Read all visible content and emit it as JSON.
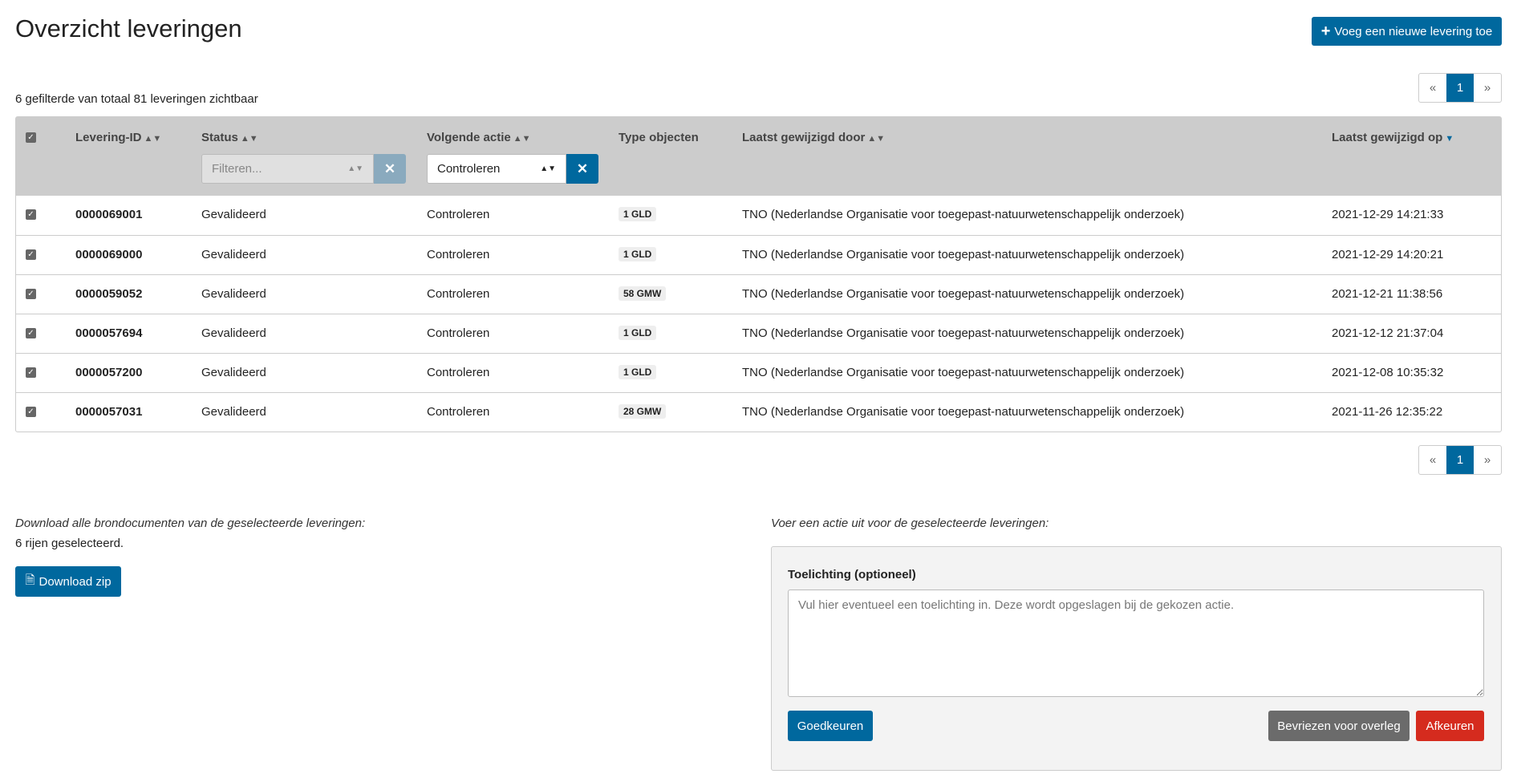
{
  "page": {
    "title": "Overzicht leveringen",
    "add_button": "Voeg een nieuwe levering toe",
    "summary": "6 gefilterde van totaal 81 leveringen zichtbaar"
  },
  "pagination": {
    "prev": "«",
    "current": "1",
    "next": "»"
  },
  "table": {
    "headers": {
      "id": "Levering-ID",
      "status": "Status",
      "next_action": "Volgende actie",
      "type": "Type objecten",
      "modified_by": "Laatst gewijzigd door",
      "modified_on": "Laatst gewijzigd op"
    },
    "filters": {
      "status_placeholder": "Filteren...",
      "next_action_value": "Controleren"
    },
    "rows": [
      {
        "id": "0000069001",
        "status": "Gevalideerd",
        "next_action": "Controleren",
        "type": "1 GLD",
        "modified_by": "TNO (Nederlandse Organisatie voor toegepast-natuurwetenschappelijk onderzoek)",
        "modified_on": "2021-12-29 14:21:33"
      },
      {
        "id": "0000069000",
        "status": "Gevalideerd",
        "next_action": "Controleren",
        "type": "1 GLD",
        "modified_by": "TNO (Nederlandse Organisatie voor toegepast-natuurwetenschappelijk onderzoek)",
        "modified_on": "2021-12-29 14:20:21"
      },
      {
        "id": "0000059052",
        "status": "Gevalideerd",
        "next_action": "Controleren",
        "type": "58 GMW",
        "modified_by": "TNO (Nederlandse Organisatie voor toegepast-natuurwetenschappelijk onderzoek)",
        "modified_on": "2021-12-21 11:38:56"
      },
      {
        "id": "0000057694",
        "status": "Gevalideerd",
        "next_action": "Controleren",
        "type": "1 GLD",
        "modified_by": "TNO (Nederlandse Organisatie voor toegepast-natuurwetenschappelijk onderzoek)",
        "modified_on": "2021-12-12 21:37:04"
      },
      {
        "id": "0000057200",
        "status": "Gevalideerd",
        "next_action": "Controleren",
        "type": "1 GLD",
        "modified_by": "TNO (Nederlandse Organisatie voor toegepast-natuurwetenschappelijk onderzoek)",
        "modified_on": "2021-12-08 10:35:32"
      },
      {
        "id": "0000057031",
        "status": "Gevalideerd",
        "next_action": "Controleren",
        "type": "28 GMW",
        "modified_by": "TNO (Nederlandse Organisatie voor toegepast-natuurwetenschappelijk onderzoek)",
        "modified_on": "2021-11-26 12:35:22"
      }
    ]
  },
  "download": {
    "label": "Download alle brondocumenten van de geselecteerde leveringen:",
    "selected": "6 rijen geselecteerd.",
    "button": "Download zip"
  },
  "action": {
    "label": "Voer een actie uit voor de geselecteerde leveringen:",
    "comment_label": "Toelichting (optioneel)",
    "comment_placeholder": "Vul hier eventueel een toelichting in. Deze wordt opgeslagen bij de gekozen actie.",
    "approve": "Goedkeuren",
    "freeze": "Bevriezen voor overleg",
    "reject": "Afkeuren"
  },
  "colors": {
    "accent": "#00689e",
    "danger": "#d52b1e",
    "neutral": "#6b6b6b",
    "header_bg": "#cccccc"
  }
}
